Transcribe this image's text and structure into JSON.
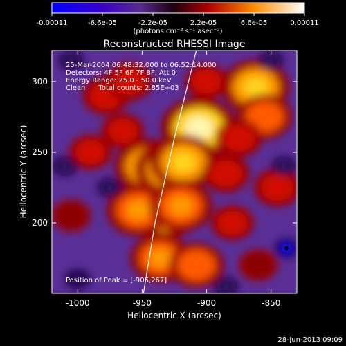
{
  "chart_data": {
    "type": "heatmap",
    "title": "Reconstructed RHESSI Image",
    "xlabel": "Heliocentric X (arcsec)",
    "ylabel": "Heliocentric Y (arcsec)",
    "colorbar": {
      "ticks": [
        "-0.00011",
        "-6.6e-05",
        "-2.2e-05",
        "2.2e-05",
        "6.6e-05",
        "0.00011"
      ],
      "range": [
        -0.00011,
        0.00011
      ],
      "units": "(photons cm⁻² s⁻¹ asec⁻²)"
    },
    "x_ticks": [
      "-1000",
      "-950",
      "-900",
      "-850"
    ],
    "y_ticks": [
      "200",
      "250",
      "300"
    ],
    "xlim": [
      -1020,
      -830
    ],
    "ylim": [
      150,
      322
    ],
    "annotations": [
      "25-Mar-2004 06:48:32.000 to 06:52:14.000",
      "Detectors: 4F 5F 6F 7F 8F, Att 0",
      "Energy Range: 25.0 - 50.0 keV",
      "Clean      Total counts: 2.85E+03"
    ],
    "peak_label": "Position of Peak = [-906,267]",
    "peak_position": [
      -906,
      267
    ],
    "limb_line_points": [
      [
        -949,
        150
      ],
      [
        -940,
        200
      ],
      [
        -925,
        260
      ],
      [
        -908,
        322
      ]
    ],
    "hot_spots": [
      {
        "x": -906,
        "y": 267,
        "value": 0.00011
      },
      {
        "x": -945,
        "y": 240,
        "value": 9e-05
      },
      {
        "x": -928,
        "y": 238,
        "value": 0.0001
      },
      {
        "x": -918,
        "y": 243,
        "value": 9e-05
      },
      {
        "x": -934,
        "y": 207,
        "value": 9e-05
      },
      {
        "x": -953,
        "y": 209,
        "value": 8e-05
      },
      {
        "x": -920,
        "y": 212,
        "value": 8e-05
      },
      {
        "x": -862,
        "y": 296,
        "value": 9e-05
      },
      {
        "x": -855,
        "y": 275,
        "value": 6e-05
      },
      {
        "x": -936,
        "y": 175,
        "value": 7e-05
      },
      {
        "x": -908,
        "y": 170,
        "value": 6e-05
      },
      {
        "x": -875,
        "y": 260,
        "value": 4e-05
      },
      {
        "x": -885,
        "y": 235,
        "value": 4e-05
      },
      {
        "x": -978,
        "y": 290,
        "value": 4e-05
      },
      {
        "x": -990,
        "y": 250,
        "value": 3e-05
      },
      {
        "x": -960,
        "y": 300,
        "value": 4e-05
      },
      {
        "x": -845,
        "y": 225,
        "value": 4e-05
      },
      {
        "x": -900,
        "y": 300,
        "value": 3e-05
      },
      {
        "x": -880,
        "y": 200,
        "value": 3e-05
      },
      {
        "x": -1005,
        "y": 205,
        "value": 2e-05
      },
      {
        "x": -965,
        "y": 265,
        "value": 3e-05
      },
      {
        "x": -860,
        "y": 170,
        "value": 2e-05
      }
    ],
    "cold_spots": [
      {
        "x": -838,
        "y": 182,
        "value": -0.00011
      },
      {
        "x": -1000,
        "y": 160,
        "value": -5e-05
      },
      {
        "x": -1005,
        "y": 315,
        "value": -4e-05
      },
      {
        "x": -885,
        "y": 155,
        "value": -4e-05
      },
      {
        "x": -1010,
        "y": 240,
        "value": -3e-05
      },
      {
        "x": -840,
        "y": 240,
        "value": -3e-05
      },
      {
        "x": -975,
        "y": 225,
        "value": -3e-05
      },
      {
        "x": -850,
        "y": 315,
        "value": -3e-05
      }
    ]
  },
  "footer_date": "28-Jun-2013 09:09"
}
